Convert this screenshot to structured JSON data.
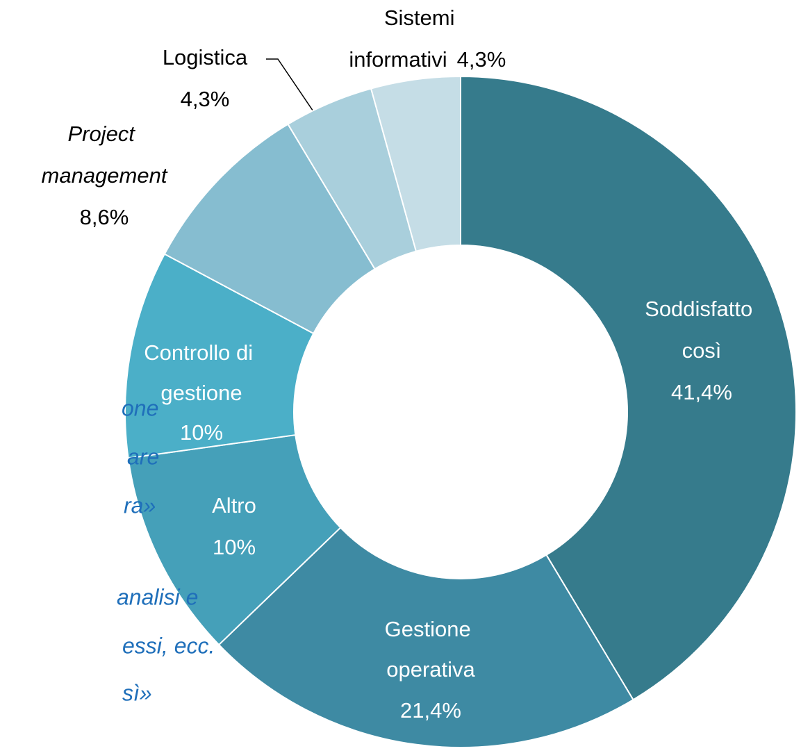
{
  "chart_data": {
    "type": "donut",
    "categories": [
      "Soddisfatto così",
      "Gestione operativa",
      "Altro",
      "Controllo di gestione",
      "Project management",
      "Logistica",
      "Sistemi informativi"
    ],
    "values": [
      41.4,
      21.4,
      10,
      10,
      8.6,
      4.3,
      4.3
    ],
    "value_labels": [
      "41,4%",
      "21,4%",
      "10%",
      "10%",
      "8,6%",
      "4,3%",
      "4,3%"
    ],
    "colors": [
      "#367b8c",
      "#3e8aa3",
      "#45a0b9",
      "#4bafc8",
      "#86bdd0",
      "#a9cfdc",
      "#c5dde6"
    ]
  },
  "side_text": [
    "one",
    "are",
    "ra»",
    "analisi e",
    "essi, ecc.",
    "sì»"
  ]
}
